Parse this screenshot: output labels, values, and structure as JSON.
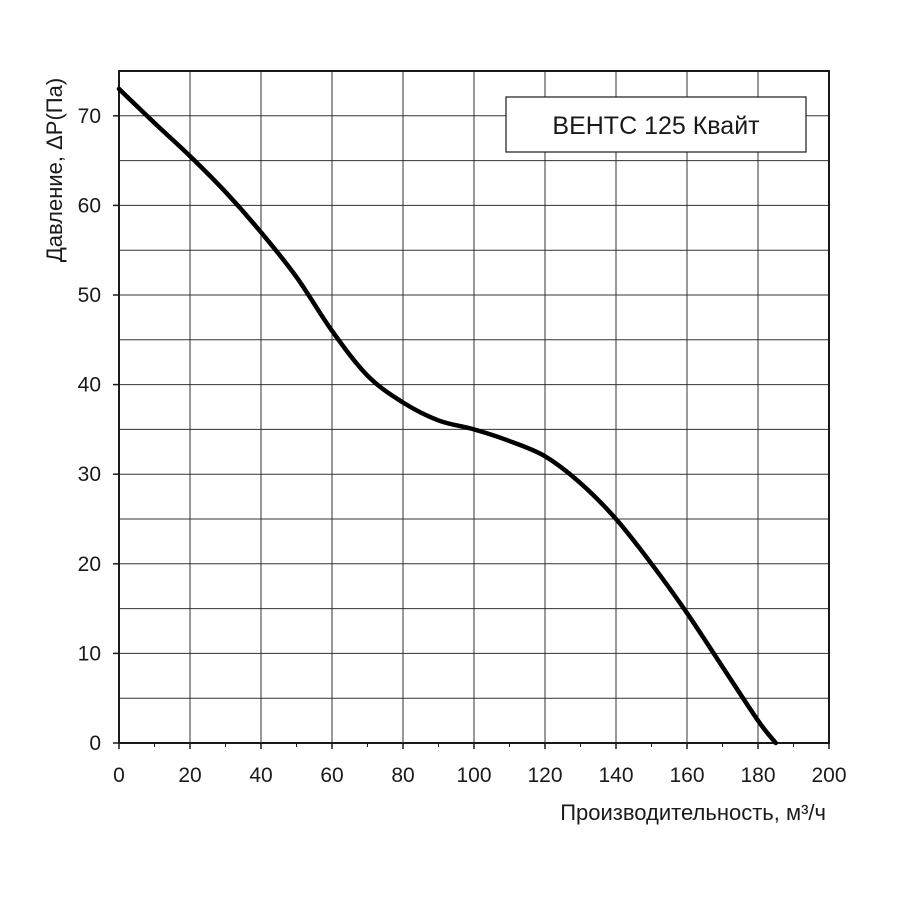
{
  "chart_data": {
    "type": "line",
    "title": "",
    "xlabel": "Производительность, м³/ч",
    "ylabel": "Давление, ΔP(Па)",
    "xlim": [
      0,
      200
    ],
    "ylim": [
      0,
      75
    ],
    "x_ticks": [
      "0",
      "20",
      "40",
      "60",
      "80",
      "100",
      "120",
      "140",
      "160",
      "180",
      "200"
    ],
    "y_ticks": [
      "0",
      "10",
      "20",
      "30",
      "40",
      "50",
      "60",
      "70"
    ],
    "grid": true,
    "legend_position": "top-right",
    "series": [
      {
        "name": "ВЕНТС 125 Квайт",
        "color": "#000000",
        "x": [
          0,
          10,
          20,
          30,
          40,
          50,
          60,
          70,
          80,
          90,
          100,
          110,
          120,
          130,
          140,
          150,
          160,
          170,
          180,
          185
        ],
        "y": [
          73,
          69.2,
          65.5,
          61.5,
          57,
          52,
          46,
          41,
          38,
          36,
          35,
          33.7,
          32,
          29,
          25,
          20,
          14.5,
          8.5,
          2.5,
          0
        ]
      }
    ]
  }
}
